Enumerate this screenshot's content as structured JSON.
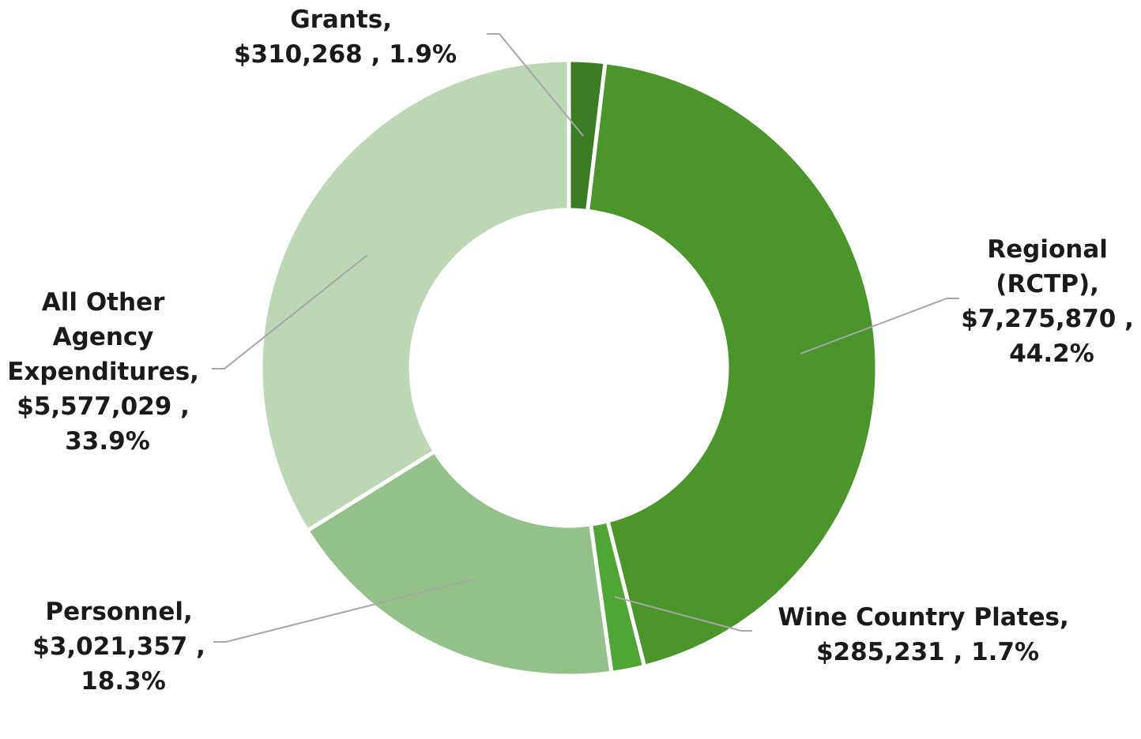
{
  "chart_data": {
    "type": "pie",
    "subtype": "donut",
    "title": "",
    "legend": "none",
    "start_angle_deg": 0,
    "direction": "clockwise",
    "slices": [
      {
        "name": "Grants",
        "value": 310268,
        "value_label": "$310,268",
        "percent": 1.9,
        "percent_label": "1.9%",
        "color": "#3a7d22",
        "label_lines": [
          "Grants,",
          "$310,268 , 1.9%"
        ]
      },
      {
        "name": "Regional (RCTP)",
        "value": 7275870,
        "value_label": "$7,275,870",
        "percent": 44.2,
        "percent_label": "44.2%",
        "color": "#4a962a",
        "label_lines": [
          "Regional",
          "(RCTP),",
          "$7,275,870 ,",
          "44.2%"
        ]
      },
      {
        "name": "Wine Country Plates",
        "value": 285231,
        "value_label": "$285,231",
        "percent": 1.7,
        "percent_label": "1.7%",
        "color": "#4ea734",
        "label_lines": [
          "Wine Country Plates,",
          "$285,231 , 1.7%"
        ]
      },
      {
        "name": "Personnel",
        "value": 3021357,
        "value_label": "$3,021,357",
        "percent": 18.3,
        "percent_label": "18.3%",
        "color": "#94c18a",
        "label_lines": [
          "Personnel,",
          "$3,021,357 ,",
          "18.3%"
        ]
      },
      {
        "name": "All Other Agency Expenditures",
        "value": 5577029,
        "value_label": "$5,577,029",
        "percent": 33.9,
        "percent_label": "33.9%",
        "color": "#bcd6b6",
        "label_lines": [
          "All Other",
          "Agency",
          "Expenditures,",
          "$5,577,029 ,",
          "33.9%"
        ]
      }
    ]
  }
}
